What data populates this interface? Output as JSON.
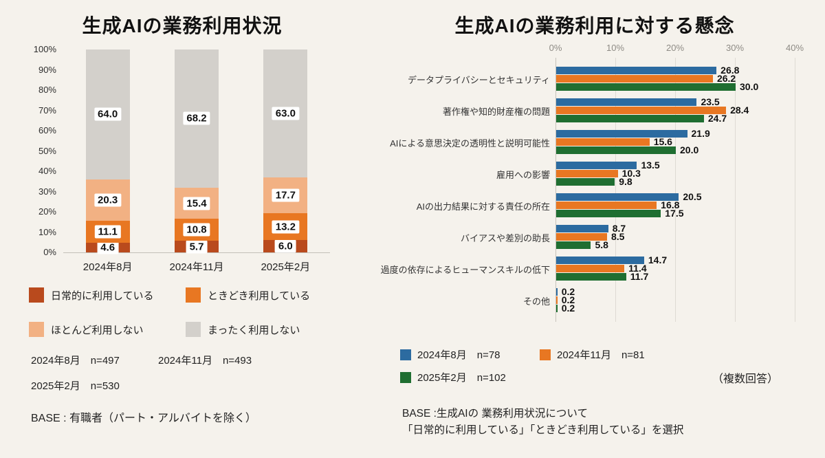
{
  "background": "#f5f2ec",
  "left_panel": {
    "title": "生成AIの業務利用状況",
    "samples": [
      "2024年8月　n=497",
      "2024年11月　n=493",
      "2025年2月　n=530"
    ],
    "base_note": "BASE : 有職者（パート・アルバイトを除く）"
  },
  "right_panel": {
    "title": "生成AIの業務利用に対する懸念",
    "multi_answer_note": "（複数回答）",
    "base_note_line1": "BASE :生成AIの 業務利用状況について",
    "base_note_line2": "「日常的に利用している」「ときどき利用している」を選択"
  },
  "chart_data": [
    {
      "type": "bar",
      "orientation": "vertical",
      "stacked": true,
      "percent": true,
      "title": "生成AIの業務利用状況",
      "categories": [
        "2024年8月",
        "2024年11月",
        "2025年2月"
      ],
      "series": [
        {
          "name": "日常的に利用している",
          "color": "#b94a1d",
          "values": [
            4.6,
            5.7,
            6.0
          ]
        },
        {
          "name": "ときどき利用している",
          "color": "#e87722",
          "values": [
            11.1,
            10.8,
            13.2
          ]
        },
        {
          "name": "ほとんど利用しない",
          "color": "#f2b183",
          "values": [
            20.3,
            15.4,
            17.7
          ]
        },
        {
          "name": "まったく利用しない",
          "color": "#d3d0cb",
          "values": [
            64.0,
            68.2,
            63.0
          ]
        }
      ],
      "ylim": [
        0,
        100
      ],
      "yticks": [
        "0%",
        "10%",
        "20%",
        "30%",
        "40%",
        "50%",
        "60%",
        "70%",
        "80%",
        "90%",
        "100%"
      ],
      "legend_position": "bottom",
      "grid": false
    },
    {
      "type": "bar",
      "orientation": "horizontal",
      "stacked": false,
      "title": "生成AIの業務利用に対する懸念",
      "categories": [
        "データプライバシーとセキュリティ",
        "著作権や知的財産権の問題",
        "AIによる意思決定の透明性と説明可能性",
        "雇用への影響",
        "AIの出力結果に対する責任の所在",
        "バイアスや差別の助長",
        "過度の依存によるヒューマンスキルの低下",
        "その他"
      ],
      "series": [
        {
          "name": "2024年8月",
          "n": "n=78",
          "color": "#2c6ba0",
          "values": [
            26.8,
            23.5,
            21.9,
            13.5,
            20.5,
            8.7,
            14.7,
            0.2
          ]
        },
        {
          "name": "2024年11月",
          "n": "n=81",
          "color": "#e87722",
          "values": [
            26.2,
            28.4,
            15.6,
            10.3,
            16.8,
            8.5,
            11.4,
            0.2
          ]
        },
        {
          "name": "2025年2月",
          "n": "n=102",
          "color": "#1f6e31",
          "values": [
            30.0,
            24.7,
            20.0,
            9.8,
            17.5,
            5.8,
            11.7,
            0.2
          ]
        }
      ],
      "xlim": [
        0,
        40
      ],
      "xticks": [
        "0%",
        "10%",
        "20%",
        "30%",
        "40%"
      ],
      "legend_position": "bottom",
      "grid": true
    }
  ]
}
